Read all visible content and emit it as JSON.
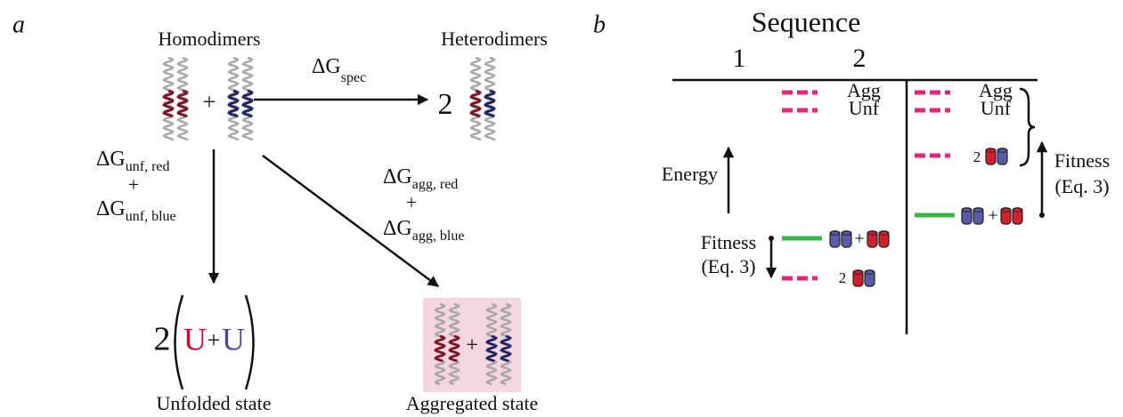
{
  "panel_a": {
    "label": "a",
    "homodimers": "Homodimers",
    "heterodimers": "Heterodimers",
    "homo_plus": "+",
    "hetero_count": "2",
    "spec": {
      "symbol": "ΔG",
      "sub": "spec"
    },
    "unf": {
      "red": {
        "symbol": "ΔG",
        "sub": "unf, red"
      },
      "plus": "+",
      "blue": {
        "symbol": "ΔG",
        "sub": "unf, blue"
      }
    },
    "agg": {
      "red": {
        "symbol": "ΔG",
        "sub": "agg, red"
      },
      "plus": "+",
      "blue": {
        "symbol": "ΔG",
        "sub": "agg, blue"
      }
    },
    "unfolded": {
      "count": "2",
      "u_red": "U",
      "plus": "+",
      "u_blue": "U",
      "label": "Unfolded state"
    },
    "aggregated": {
      "plus": "+",
      "label": "Aggregated state"
    }
  },
  "panel_b": {
    "label": "b",
    "title": "Sequence",
    "columns": [
      "1",
      "2"
    ],
    "energy": "Energy",
    "col1": {
      "agg": "Agg",
      "unf": "Unf",
      "plus": "+",
      "dimer_count": "2",
      "fitness": "Fitness",
      "eq": "(Eq. 3)"
    },
    "col2": {
      "agg": "Agg",
      "unf": "Unf",
      "dimer_count": "2",
      "plus": "+",
      "fitness": "Fitness",
      "eq": "(Eq. 3)"
    }
  }
}
